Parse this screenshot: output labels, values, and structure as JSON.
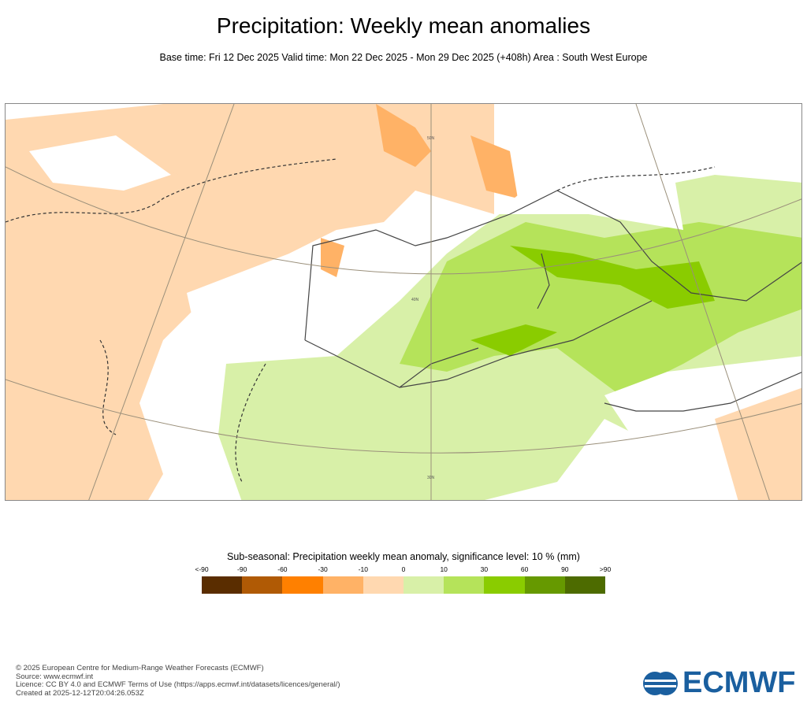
{
  "title": "Precipitation: Weekly mean anomalies",
  "subtitle": "Base time: Fri 12 Dec 2025 Valid time: Mon 22 Dec 2025 - Mon 29 Dec 2025 (+408h) Area : South West Europe",
  "map": {
    "lat_labels": [
      "50N",
      "40N",
      "30N"
    ]
  },
  "legend": {
    "title": "Sub-seasonal: Precipitation weekly mean anomaly, significance level: 10 % (mm)",
    "ticks": [
      "<-90",
      "-90",
      "-60",
      "-30",
      "-10",
      "0",
      "10",
      "30",
      "60",
      "90",
      ">90"
    ],
    "colors": [
      "#5a2d00",
      "#b05a05",
      "#ff8000",
      "#ffb266",
      "#ffd8b0",
      "#d8f0a8",
      "#b5e35a",
      "#8acc00",
      "#669900",
      "#4d6b00"
    ]
  },
  "footer": {
    "lines": [
      "© 2025 European Centre for Medium-Range Weather Forecasts (ECMWF)",
      "Source: www.ecmwf.int",
      "Licence: CC BY 4.0 and ECMWF Terms of Use (https://apps.ecmwf.int/datasets/licences/general/)",
      "Created at 2025-12-12T20:04:26.053Z"
    ]
  },
  "logo": {
    "text": "ECMWF",
    "color": "#1a5f9f"
  }
}
